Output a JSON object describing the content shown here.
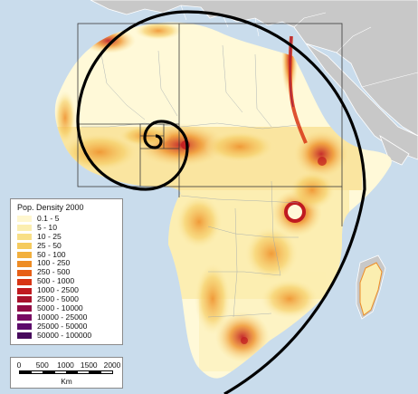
{
  "legend": {
    "title": "Pop. Density 2000",
    "items": [
      {
        "label": "0.1 - 5",
        "color": "#fff7cf"
      },
      {
        "label": "5 - 10",
        "color": "#fbeeb0"
      },
      {
        "label": "10 - 25",
        "color": "#f8df86"
      },
      {
        "label": "25 - 50",
        "color": "#f5cb5e"
      },
      {
        "label": "50 - 100",
        "color": "#f2b03e"
      },
      {
        "label": "100 - 250",
        "color": "#ee8c24"
      },
      {
        "label": "250 - 500",
        "color": "#e75f16"
      },
      {
        "label": "500 - 1000",
        "color": "#d83514"
      },
      {
        "label": "1000 - 2500",
        "color": "#c01a20"
      },
      {
        "label": "2500 - 5000",
        "color": "#a8122c"
      },
      {
        "label": "5000 - 10000",
        "color": "#910c45"
      },
      {
        "label": "10000 - 25000",
        "color": "#780b62"
      },
      {
        "label": "25000 - 50000",
        "color": "#5d0b6b"
      },
      {
        "label": "50000 - 100000",
        "color": "#470a5c"
      }
    ]
  },
  "scale_bar": {
    "ticks": [
      "0",
      "500",
      "1000",
      "1500",
      "2000"
    ],
    "unit": "Km"
  },
  "colors": {
    "ocean": "#c9dcec",
    "other_land": "#c8c8c8",
    "africa_base": "#fff9d8",
    "spiral": "#000000",
    "grid": "#3a3a3a"
  }
}
